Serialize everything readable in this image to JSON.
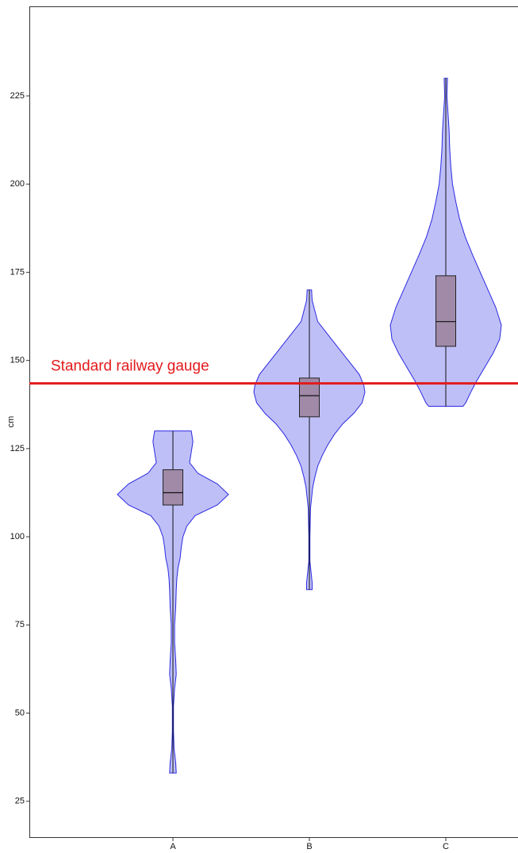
{
  "chart_data": {
    "type": "violin",
    "y_label": "cm",
    "categories": [
      "A",
      "B",
      "C"
    ],
    "ylim": [
      14.6,
      250.4
    ],
    "yticks": [
      25,
      50,
      75,
      100,
      125,
      150,
      175,
      200,
      225
    ],
    "fill_color": "#b4b4f6",
    "line_color": "#2a2ae0",
    "box_color": "#a08aa8",
    "violins": [
      {
        "y": [
          130,
          127,
          124,
          121,
          118,
          115,
          112,
          109,
          106,
          103,
          100,
          97,
          94,
          91,
          88,
          85,
          80,
          75,
          70,
          65,
          61,
          57,
          52,
          45,
          40,
          36,
          33
        ],
        "density": [
          0.33,
          0.36,
          0.33,
          0.3,
          0.45,
          0.8,
          1.0,
          0.8,
          0.4,
          0.25,
          0.18,
          0.15,
          0.13,
          0.09,
          0.07,
          0.06,
          0.05,
          0.03,
          0.03,
          0.05,
          0.06,
          0.03,
          0.01,
          0.01,
          0.02,
          0.05,
          0.06
        ],
        "min": 33,
        "q1": 109,
        "median": 112.5,
        "q3": 119,
        "max": 130
      },
      {
        "y": [
          170,
          167,
          164,
          161,
          158,
          155,
          152,
          149,
          146,
          143,
          141,
          138,
          135,
          132,
          129,
          126,
          123,
          120,
          117,
          114,
          111,
          108,
          100,
          93,
          90,
          87,
          85
        ],
        "density": [
          0.04,
          0.05,
          0.1,
          0.15,
          0.3,
          0.45,
          0.6,
          0.75,
          0.9,
          0.98,
          1.0,
          0.95,
          0.8,
          0.6,
          0.45,
          0.33,
          0.23,
          0.15,
          0.1,
          0.06,
          0.04,
          0.02,
          0.01,
          0.01,
          0.03,
          0.05,
          0.05
        ],
        "min": 85,
        "q1": 134,
        "median": 140,
        "q3": 145,
        "max": 170
      },
      {
        "y": [
          230,
          225,
          220,
          215,
          210,
          205,
          200,
          195,
          190,
          185,
          180,
          175,
          170,
          165,
          160,
          156,
          152,
          148,
          144,
          141,
          138,
          137
        ],
        "density": [
          0.03,
          0.02,
          0.04,
          0.06,
          0.07,
          0.09,
          0.12,
          0.18,
          0.25,
          0.35,
          0.48,
          0.62,
          0.76,
          0.9,
          1.0,
          0.97,
          0.85,
          0.7,
          0.55,
          0.45,
          0.36,
          0.31
        ],
        "min": 137,
        "q1": 154,
        "median": 161,
        "q3": 174,
        "max": 230
      }
    ],
    "reference_line": {
      "value": 143.5,
      "label": "Standard railway gauge",
      "color": "#e31a1c"
    }
  }
}
